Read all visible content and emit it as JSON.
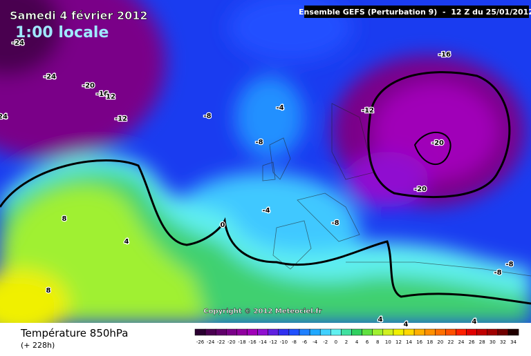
{
  "header": {
    "date": "Samedi 4 février 2012",
    "time": "1:00 locale",
    "run": "Ensemble GEFS (Perturbation 9)  -  12 Z du 25/01/2012"
  },
  "map": {
    "contour_labels": [
      -24,
      -24,
      -20,
      -16,
      12,
      -12,
      24,
      -8,
      -4,
      -8,
      -12,
      -16,
      -20,
      -20,
      8,
      0,
      -4,
      -8,
      4,
      8,
      -8,
      -8,
      4,
      4,
      4
    ],
    "copyright": "Copyright © 2012 Meteociel.fr"
  },
  "footer": {
    "variable": "Température 850hPa",
    "lead": "(+ 228h)"
  },
  "legend": {
    "ticks": [
      -26,
      -24,
      -22,
      -20,
      -18,
      -16,
      -14,
      -12,
      -10,
      -8,
      -6,
      -4,
      -2,
      0,
      2,
      4,
      6,
      8,
      10,
      12,
      14,
      16,
      18,
      20,
      22,
      24,
      26,
      28,
      30,
      32,
      34
    ],
    "colors": [
      "#2a0030",
      "#4a0050",
      "#60006a",
      "#7a0088",
      "#90009f",
      "#a000b8",
      "#9010d0",
      "#6020e0",
      "#3030f0",
      "#2050ff",
      "#2080ff",
      "#20a8ff",
      "#40d0ff",
      "#60f0f0",
      "#40e0a0",
      "#30d060",
      "#60e040",
      "#a0f030",
      "#d0f020",
      "#f0f000",
      "#ffd800",
      "#ffb000",
      "#ff9000",
      "#ff7000",
      "#ff5000",
      "#ff2000",
      "#e00000",
      "#c00000",
      "#a00000",
      "#700000",
      "#200000"
    ]
  }
}
